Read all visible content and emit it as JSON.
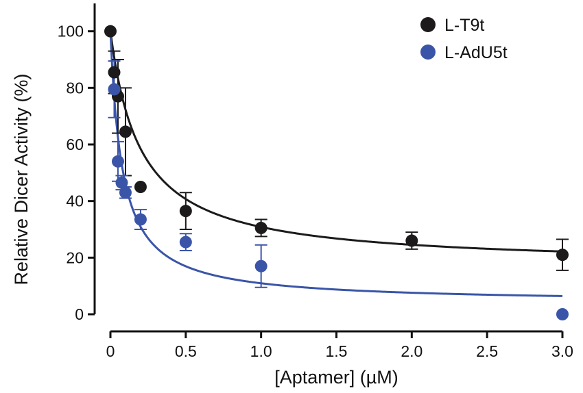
{
  "chart_data": {
    "type": "scatter",
    "xlabel": "[Aptamer] (µM)",
    "ylabel": "Relative Dicer Activity (%)",
    "xlim": [
      0,
      3.0
    ],
    "ylim": [
      0,
      105
    ],
    "x_ticks": [
      0,
      0.5,
      1.0,
      1.5,
      2.0,
      2.5,
      3.0
    ],
    "x_tick_labels": [
      "0",
      "0.5",
      "1.0",
      "1.5",
      "2.0",
      "2.5",
      "3.0"
    ],
    "y_ticks": [
      0,
      20,
      40,
      60,
      80,
      100
    ],
    "y_tick_labels": [
      "0",
      "20",
      "40",
      "60",
      "80",
      "100"
    ],
    "grid": false,
    "legend_position": "top-right",
    "series": [
      {
        "name": "L-T9t",
        "color": "#1c1a1a",
        "x": [
          0,
          0.025,
          0.05,
          0.1,
          0.2,
          0.5,
          1.0,
          2.0,
          3.0
        ],
        "y": [
          100,
          85.5,
          77,
          64.5,
          45,
          36.5,
          30.5,
          26,
          21
        ],
        "error": [
          0,
          7.5,
          13,
          15.5,
          0,
          6.5,
          3,
          3,
          5.5
        ],
        "fit": {
          "model": "hyperbolic",
          "bottom": 17,
          "ic50": 0.2
        }
      },
      {
        "name": "L-AdU5t",
        "color": "#3a55a8",
        "x": [
          0.025,
          0.05,
          0.075,
          0.1,
          0.2,
          0.5,
          1.0,
          3.0
        ],
        "y": [
          79.5,
          54,
          46.5,
          43,
          33.5,
          25.5,
          17,
          0
        ],
        "error": [
          10,
          7,
          2.5,
          2,
          3.5,
          3,
          7.5,
          0
        ],
        "fit": {
          "model": "hyperbolic",
          "bottom": 4,
          "ic50": 0.078
        }
      }
    ]
  }
}
